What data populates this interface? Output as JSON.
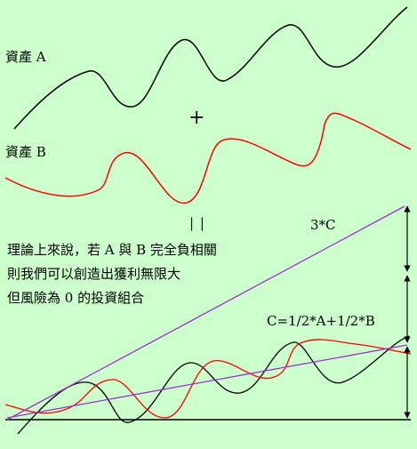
{
  "labels": {
    "asset_a": "資產 A",
    "asset_b": "資產 B",
    "plus": "+",
    "equals": "| |",
    "three_c": "3*C",
    "formula": "C=1/2*A+1/2*B"
  },
  "explanation": {
    "line1": "理論上來說，若 A 與 B 完全負相關",
    "line2": "則我們可以創造出獲利無限大",
    "line3": "但風險為 0 的投資組合"
  },
  "colors": {
    "background": "#ccffcc",
    "asset_a_curve": "#000000",
    "asset_b_curve": "#ff0000",
    "portfolio_line": "#9933cc",
    "arrow": "#000000"
  }
}
